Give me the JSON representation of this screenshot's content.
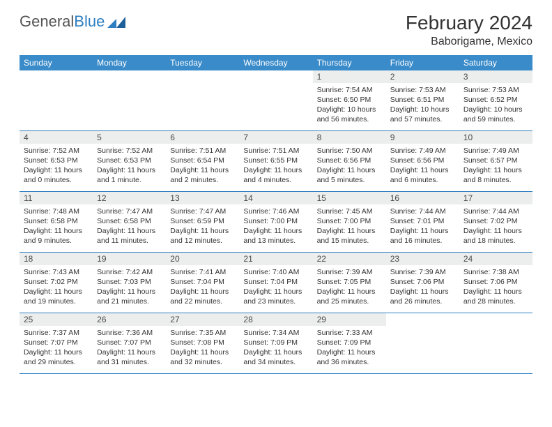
{
  "brand": {
    "part1": "General",
    "part2": "Blue"
  },
  "title": "February 2024",
  "location": "Baborigame, Mexico",
  "header_bg": "#3a8bc9",
  "header_fg": "#ffffff",
  "rule_color": "#2e7fc1",
  "daynum_bg": "#eceded",
  "weekdays": [
    "Sunday",
    "Monday",
    "Tuesday",
    "Wednesday",
    "Thursday",
    "Friday",
    "Saturday"
  ],
  "weeks": [
    [
      {
        "blank": true
      },
      {
        "blank": true
      },
      {
        "blank": true
      },
      {
        "blank": true
      },
      {
        "day": 1,
        "sunrise": "7:54 AM",
        "sunset": "6:50 PM",
        "daylight": "10 hours and 56 minutes."
      },
      {
        "day": 2,
        "sunrise": "7:53 AM",
        "sunset": "6:51 PM",
        "daylight": "10 hours and 57 minutes."
      },
      {
        "day": 3,
        "sunrise": "7:53 AM",
        "sunset": "6:52 PM",
        "daylight": "10 hours and 59 minutes."
      }
    ],
    [
      {
        "day": 4,
        "sunrise": "7:52 AM",
        "sunset": "6:53 PM",
        "daylight": "11 hours and 0 minutes."
      },
      {
        "day": 5,
        "sunrise": "7:52 AM",
        "sunset": "6:53 PM",
        "daylight": "11 hours and 1 minute."
      },
      {
        "day": 6,
        "sunrise": "7:51 AM",
        "sunset": "6:54 PM",
        "daylight": "11 hours and 2 minutes."
      },
      {
        "day": 7,
        "sunrise": "7:51 AM",
        "sunset": "6:55 PM",
        "daylight": "11 hours and 4 minutes."
      },
      {
        "day": 8,
        "sunrise": "7:50 AM",
        "sunset": "6:56 PM",
        "daylight": "11 hours and 5 minutes."
      },
      {
        "day": 9,
        "sunrise": "7:49 AM",
        "sunset": "6:56 PM",
        "daylight": "11 hours and 6 minutes."
      },
      {
        "day": 10,
        "sunrise": "7:49 AM",
        "sunset": "6:57 PM",
        "daylight": "11 hours and 8 minutes."
      }
    ],
    [
      {
        "day": 11,
        "sunrise": "7:48 AM",
        "sunset": "6:58 PM",
        "daylight": "11 hours and 9 minutes."
      },
      {
        "day": 12,
        "sunrise": "7:47 AM",
        "sunset": "6:58 PM",
        "daylight": "11 hours and 11 minutes."
      },
      {
        "day": 13,
        "sunrise": "7:47 AM",
        "sunset": "6:59 PM",
        "daylight": "11 hours and 12 minutes."
      },
      {
        "day": 14,
        "sunrise": "7:46 AM",
        "sunset": "7:00 PM",
        "daylight": "11 hours and 13 minutes."
      },
      {
        "day": 15,
        "sunrise": "7:45 AM",
        "sunset": "7:00 PM",
        "daylight": "11 hours and 15 minutes."
      },
      {
        "day": 16,
        "sunrise": "7:44 AM",
        "sunset": "7:01 PM",
        "daylight": "11 hours and 16 minutes."
      },
      {
        "day": 17,
        "sunrise": "7:44 AM",
        "sunset": "7:02 PM",
        "daylight": "11 hours and 18 minutes."
      }
    ],
    [
      {
        "day": 18,
        "sunrise": "7:43 AM",
        "sunset": "7:02 PM",
        "daylight": "11 hours and 19 minutes."
      },
      {
        "day": 19,
        "sunrise": "7:42 AM",
        "sunset": "7:03 PM",
        "daylight": "11 hours and 21 minutes."
      },
      {
        "day": 20,
        "sunrise": "7:41 AM",
        "sunset": "7:04 PM",
        "daylight": "11 hours and 22 minutes."
      },
      {
        "day": 21,
        "sunrise": "7:40 AM",
        "sunset": "7:04 PM",
        "daylight": "11 hours and 23 minutes."
      },
      {
        "day": 22,
        "sunrise": "7:39 AM",
        "sunset": "7:05 PM",
        "daylight": "11 hours and 25 minutes."
      },
      {
        "day": 23,
        "sunrise": "7:39 AM",
        "sunset": "7:06 PM",
        "daylight": "11 hours and 26 minutes."
      },
      {
        "day": 24,
        "sunrise": "7:38 AM",
        "sunset": "7:06 PM",
        "daylight": "11 hours and 28 minutes."
      }
    ],
    [
      {
        "day": 25,
        "sunrise": "7:37 AM",
        "sunset": "7:07 PM",
        "daylight": "11 hours and 29 minutes."
      },
      {
        "day": 26,
        "sunrise": "7:36 AM",
        "sunset": "7:07 PM",
        "daylight": "11 hours and 31 minutes."
      },
      {
        "day": 27,
        "sunrise": "7:35 AM",
        "sunset": "7:08 PM",
        "daylight": "11 hours and 32 minutes."
      },
      {
        "day": 28,
        "sunrise": "7:34 AM",
        "sunset": "7:09 PM",
        "daylight": "11 hours and 34 minutes."
      },
      {
        "day": 29,
        "sunrise": "7:33 AM",
        "sunset": "7:09 PM",
        "daylight": "11 hours and 36 minutes."
      },
      {
        "blank": true
      },
      {
        "blank": true
      }
    ]
  ],
  "labels": {
    "sunrise": "Sunrise: ",
    "sunset": "Sunset: ",
    "daylight": "Daylight: "
  }
}
